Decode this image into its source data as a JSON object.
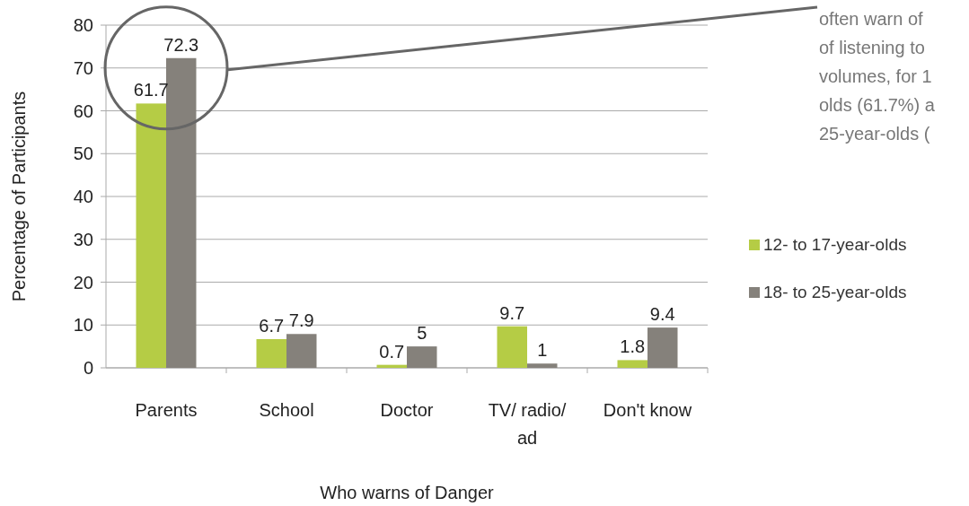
{
  "chart_data": {
    "type": "bar",
    "xlabel": "Who warns of Danger",
    "ylabel": "Percentage of Participants",
    "categories": [
      "Parents",
      "School",
      "Doctor",
      "TV/ radio/ ad",
      "Don't know"
    ],
    "series": [
      {
        "name": "12- to 17-year-olds",
        "color": "#b5cc45",
        "values": [
          61.7,
          6.7,
          0.7,
          9.7,
          1.8
        ]
      },
      {
        "name": "18- to 25-year-olds",
        "color": "#85817b",
        "values": [
          72.3,
          7.9,
          5,
          1,
          9.4
        ]
      }
    ],
    "ylim": [
      0,
      80
    ],
    "yticks": [
      0,
      10,
      20,
      30,
      40,
      50,
      60,
      70,
      80
    ],
    "grid": "y",
    "legend": "right",
    "data_labels": true,
    "annotations": [
      "often warn of",
      "of listening to",
      "volumes, for 1",
      "olds (61.7%) a",
      "25-year-olds ("
    ]
  }
}
